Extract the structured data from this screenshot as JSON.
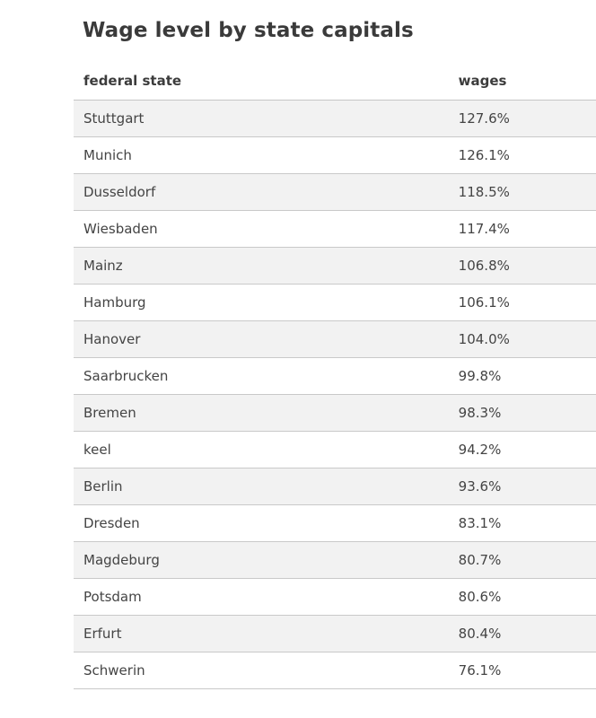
{
  "title": "Wage level by state capitals",
  "table": {
    "headers": {
      "state": "federal state",
      "wages": "wages"
    },
    "rows": [
      {
        "city": "Stuttgart",
        "wage": "127.6%"
      },
      {
        "city": "Munich",
        "wage": "126.1%"
      },
      {
        "city": "Dusseldorf",
        "wage": "118.5%"
      },
      {
        "city": "Wiesbaden",
        "wage": "117.4%"
      },
      {
        "city": "Mainz",
        "wage": "106.8%"
      },
      {
        "city": "Hamburg",
        "wage": "106.1%"
      },
      {
        "city": "Hanover",
        "wage": "104.0%"
      },
      {
        "city": "Saarbrucken",
        "wage": "99.8%"
      },
      {
        "city": "Bremen",
        "wage": "98.3%"
      },
      {
        "city": "keel",
        "wage": "94.2%"
      },
      {
        "city": "Berlin",
        "wage": "93.6%"
      },
      {
        "city": "Dresden",
        "wage": "83.1%"
      },
      {
        "city": "Magdeburg",
        "wage": "80.7%"
      },
      {
        "city": "Potsdam",
        "wage": "80.6%"
      },
      {
        "city": "Erfurt",
        "wage": "80.4%"
      },
      {
        "city": "Schwerin",
        "wage": "76.1%"
      }
    ]
  },
  "colors": {
    "stripe": "#f2f2f2",
    "rule": "#c9c9c9",
    "text": "#444444"
  }
}
